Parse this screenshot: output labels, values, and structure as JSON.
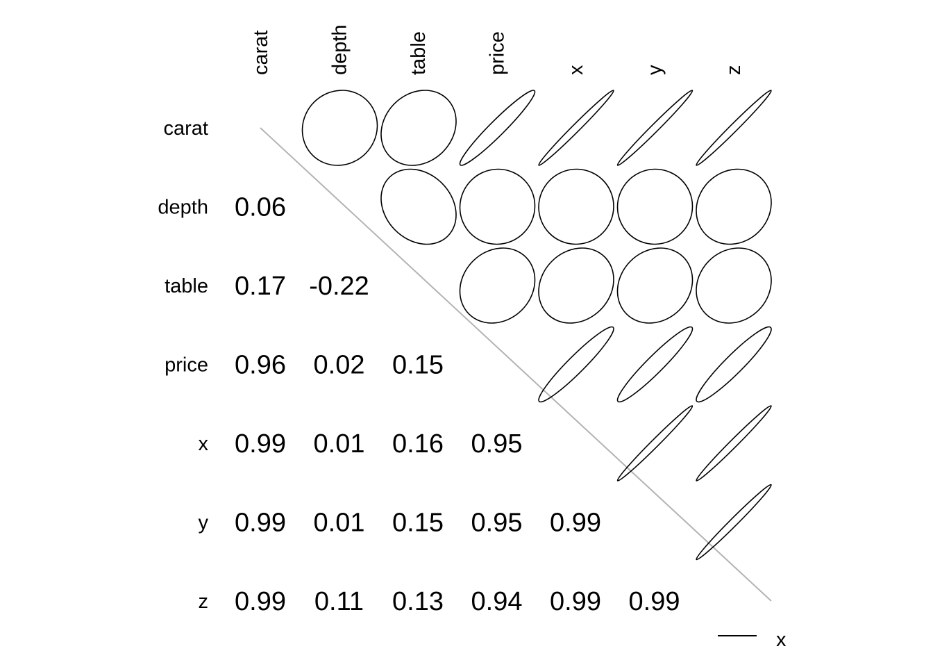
{
  "chart_data": {
    "type": "heatmap",
    "variables": [
      "carat",
      "depth",
      "table",
      "price",
      "x",
      "y",
      "z"
    ],
    "matrix": [
      [
        1.0,
        0.06,
        0.17,
        0.96,
        0.99,
        0.99,
        0.99
      ],
      [
        0.06,
        1.0,
        -0.22,
        0.02,
        0.01,
        0.01,
        0.11
      ],
      [
        0.17,
        -0.22,
        1.0,
        0.15,
        0.16,
        0.15,
        0.13
      ],
      [
        0.96,
        0.02,
        0.15,
        1.0,
        0.95,
        0.95,
        0.94
      ],
      [
        0.99,
        0.01,
        0.16,
        0.95,
        1.0,
        0.99,
        0.99
      ],
      [
        0.99,
        0.01,
        0.15,
        0.95,
        0.99,
        1.0,
        0.99
      ],
      [
        0.99,
        0.11,
        0.13,
        0.94,
        0.99,
        0.99,
        1.0
      ]
    ],
    "lower_triangle": "numbers",
    "upper_triangle": "ellipses",
    "diagonal_line_color": "#b3b3b3",
    "legend": {
      "position": "bottom-right",
      "label": "x"
    },
    "title": "",
    "xlabel": "",
    "ylabel": ""
  }
}
